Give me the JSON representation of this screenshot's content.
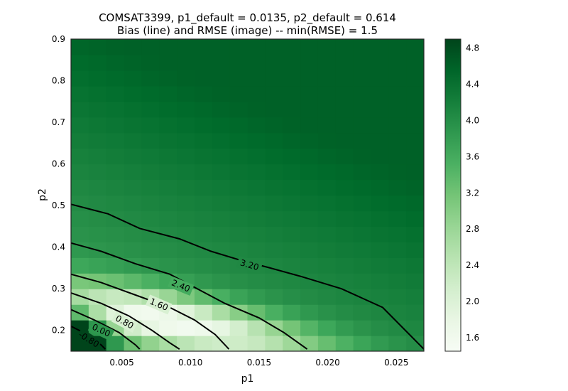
{
  "chart_data": {
    "type": "heatmap",
    "title": "COMSAT3399, p1_default = 0.0135, p2_default = 0.614",
    "subtitle": "Bias (line) and RMSE (image) -- min(RMSE) = 1.5",
    "xlabel": "p1",
    "ylabel": "p2",
    "xlim": [
      0.0013,
      0.027
    ],
    "ylim": [
      0.15,
      0.9
    ],
    "x_ticks": [
      "0.005",
      "0.010",
      "0.015",
      "0.020",
      "0.025"
    ],
    "x_tick_values": [
      0.005,
      0.01,
      0.015,
      0.02,
      0.025
    ],
    "y_ticks": [
      "0.2",
      "0.3",
      "0.4",
      "0.5",
      "0.6",
      "0.7",
      "0.8",
      "0.9"
    ],
    "y_tick_values": [
      0.2,
      0.3,
      0.4,
      0.5,
      0.6,
      0.7,
      0.8,
      0.9
    ],
    "grid_cols": 20,
    "grid_rows": 20,
    "rmse_min": 1.5,
    "colorbar": {
      "vmin": 1.45,
      "vmax": 4.9,
      "ticks": [
        "1.6",
        "2.0",
        "2.4",
        "2.8",
        "3.2",
        "3.6",
        "4.0",
        "4.4",
        "4.8"
      ],
      "tick_values": [
        1.6,
        2.0,
        2.4,
        2.8,
        3.2,
        3.6,
        4.0,
        4.4,
        4.8
      ],
      "colormap": "Greens"
    },
    "contours": [
      {
        "label": "3.20",
        "level": 3.2,
        "label_at": [
          0.0143,
          0.357
        ],
        "points": [
          [
            0.0013,
            0.503
          ],
          [
            0.004,
            0.48
          ],
          [
            0.0063,
            0.445
          ],
          [
            0.0092,
            0.42
          ],
          [
            0.0115,
            0.39
          ],
          [
            0.0135,
            0.37
          ],
          [
            0.0158,
            0.35
          ],
          [
            0.018,
            0.33
          ],
          [
            0.021,
            0.3
          ],
          [
            0.024,
            0.255
          ],
          [
            0.027,
            0.155
          ]
        ]
      },
      {
        "label": "2.40",
        "level": 2.4,
        "label_at": [
          0.0093,
          0.307
        ],
        "points": [
          [
            0.0013,
            0.41
          ],
          [
            0.0035,
            0.39
          ],
          [
            0.006,
            0.36
          ],
          [
            0.0085,
            0.335
          ],
          [
            0.0105,
            0.3
          ],
          [
            0.0125,
            0.265
          ],
          [
            0.015,
            0.23
          ],
          [
            0.0168,
            0.195
          ],
          [
            0.0185,
            0.155
          ]
        ]
      },
      {
        "label": "1.60",
        "level": 1.6,
        "label_at": [
          0.0077,
          0.262
        ],
        "points": [
          [
            0.0013,
            0.335
          ],
          [
            0.0035,
            0.315
          ],
          [
            0.006,
            0.285
          ],
          [
            0.0085,
            0.255
          ],
          [
            0.0103,
            0.225
          ],
          [
            0.0118,
            0.19
          ],
          [
            0.0128,
            0.155
          ]
        ]
      },
      {
        "label": "0.80",
        "level": 0.8,
        "label_at": [
          0.0052,
          0.22
        ],
        "points": [
          [
            0.0013,
            0.29
          ],
          [
            0.0035,
            0.265
          ],
          [
            0.0055,
            0.235
          ],
          [
            0.0072,
            0.2
          ],
          [
            0.0085,
            0.17
          ],
          [
            0.0092,
            0.155
          ]
        ]
      },
      {
        "label": "0.00",
        "level": 0.0,
        "label_at": [
          0.0035,
          0.2
        ],
        "points": [
          [
            0.0013,
            0.25
          ],
          [
            0.003,
            0.225
          ],
          [
            0.0048,
            0.195
          ],
          [
            0.006,
            0.165
          ],
          [
            0.0063,
            0.155
          ]
        ]
      },
      {
        "label": "-0.80",
        "level": -0.8,
        "label_at": [
          0.0026,
          0.178
        ],
        "points": [
          [
            0.0013,
            0.21
          ],
          [
            0.0025,
            0.19
          ],
          [
            0.0035,
            0.165
          ],
          [
            0.0038,
            0.155
          ]
        ]
      }
    ]
  }
}
